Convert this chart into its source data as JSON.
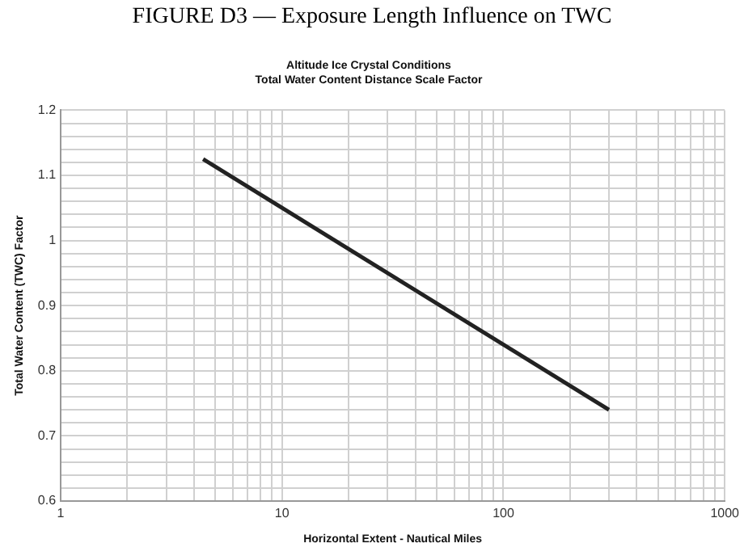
{
  "chart_data": {
    "type": "line",
    "title": "FIGURE D3 — Exposure Length Influence on TWC",
    "subtitle": "Altitude Ice Crystal Conditions\nTotal Water Content Distance Scale Factor",
    "xlabel": "Horizontal Extent - Nautical Miles",
    "ylabel": "Total Water Content (TWC) Factor",
    "log": "x",
    "x": [
      4.4,
      300
    ],
    "series": [
      {
        "color": "#222222",
        "values": [
          1.125,
          0.74
        ]
      }
    ],
    "xlim": [
      1,
      1000
    ],
    "xticks": [
      1,
      {
        "value": 2,
        "label": null
      },
      {
        "value": 3,
        "label": null
      },
      {
        "value": 4,
        "label": null
      },
      {
        "value": 5,
        "label": null
      },
      {
        "value": 6,
        "label": null
      },
      {
        "value": 7,
        "label": null
      },
      {
        "value": 8,
        "label": null
      },
      {
        "value": 9,
        "label": null
      },
      10,
      {
        "value": 20,
        "label": null
      },
      {
        "value": 30,
        "label": null
      },
      {
        "value": 40,
        "label": null
      },
      {
        "value": 50,
        "label": null
      },
      {
        "value": 60,
        "label": null
      },
      {
        "value": 70,
        "label": null
      },
      {
        "value": 80,
        "label": null
      },
      {
        "value": 90,
        "label": null
      },
      100,
      {
        "value": 200,
        "label": null
      },
      {
        "value": 300,
        "label": null
      },
      {
        "value": 400,
        "label": null
      },
      {
        "value": 500,
        "label": null
      },
      {
        "value": 600,
        "label": null
      },
      {
        "value": 700,
        "label": null
      },
      {
        "value": 800,
        "label": null
      },
      {
        "value": 900,
        "label": null
      },
      1000
    ],
    "ylim": [
      0.6,
      1.2
    ],
    "yticks": [
      0.6,
      {
        "value": 0.62,
        "label": null
      },
      {
        "value": 0.64,
        "label": null
      },
      {
        "value": 0.66,
        "label": null
      },
      {
        "value": 0.68,
        "label": null
      },
      0.7,
      {
        "value": 0.72,
        "label": null
      },
      {
        "value": 0.74,
        "label": null
      },
      {
        "value": 0.76,
        "label": null
      },
      {
        "value": 0.78,
        "label": null
      },
      0.8,
      {
        "value": 0.82,
        "label": null
      },
      {
        "value": 0.84,
        "label": null
      },
      {
        "value": 0.86,
        "label": null
      },
      {
        "value": 0.88,
        "label": null
      },
      0.9,
      {
        "value": 0.92,
        "label": null
      },
      {
        "value": 0.94,
        "label": null
      },
      {
        "value": 0.96,
        "label": null
      },
      {
        "value": 0.98,
        "label": null
      },
      1,
      {
        "value": 1.02,
        "label": null
      },
      {
        "value": 1.04,
        "label": null
      },
      {
        "value": 1.06,
        "label": null
      },
      {
        "value": 1.08,
        "label": null
      },
      1.1,
      {
        "value": 1.12,
        "label": null
      },
      {
        "value": 1.14,
        "label": null
      },
      {
        "value": 1.16,
        "label": null
      },
      {
        "value": 1.18,
        "label": null
      },
      1.2
    ],
    "grid": true,
    "legend": false,
    "marker": "none",
    "line_style": "solid"
  }
}
